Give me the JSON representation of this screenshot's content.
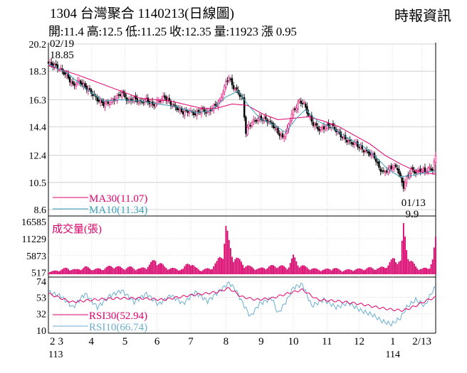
{
  "header": {
    "title": "1304  台灣聚合 1140213(日線圖)",
    "source": "時報資訊",
    "ohlc": "開:11.4 高:12.5 低:11.25 收:12.35 量:11923 漲 0.95"
  },
  "colors": {
    "up": "#e0006e",
    "down": "#000000",
    "ma30": "#e0006e",
    "ma10": "#3aa0b8",
    "volume": "#d8006a",
    "rsi30": "#e0006e",
    "rsi10": "#6aaed0",
    "grid": "#c8c8c8"
  },
  "chart_data": [
    {
      "type": "candlestick",
      "ylim": [
        8.6,
        20.2
      ],
      "y_ticks": [
        "20.2",
        "18.3",
        "16.3",
        "14.4",
        "12.4",
        "10.5",
        "8.6"
      ],
      "x_ticks": [
        "2",
        "3",
        "4",
        "5",
        "6",
        "7",
        "8",
        "9",
        "10",
        "11",
        "12",
        "1",
        "2/13"
      ],
      "x_year_labels": [
        "113",
        "114"
      ],
      "close_path": [
        [
          0,
          18.85
        ],
        [
          4,
          18.7
        ],
        [
          8,
          18.4
        ],
        [
          12,
          18.0
        ],
        [
          16,
          17.3
        ],
        [
          20,
          17.6
        ],
        [
          24,
          17.2
        ],
        [
          28,
          16.8
        ],
        [
          32,
          16.3
        ],
        [
          36,
          16.0
        ],
        [
          40,
          16.1
        ],
        [
          44,
          16.4
        ],
        [
          48,
          16.8
        ],
        [
          52,
          16.2
        ],
        [
          56,
          16.4
        ],
        [
          60,
          16.1
        ],
        [
          64,
          16.3
        ],
        [
          68,
          15.9
        ],
        [
          72,
          16.2
        ],
        [
          76,
          16.5
        ],
        [
          80,
          16.0
        ],
        [
          84,
          15.7
        ],
        [
          88,
          15.4
        ],
        [
          92,
          15.5
        ],
        [
          96,
          15.3
        ],
        [
          100,
          15.6
        ],
        [
          104,
          15.4
        ],
        [
          108,
          15.8
        ],
        [
          112,
          16.2
        ],
        [
          116,
          17.5
        ],
        [
          118,
          17.9
        ],
        [
          120,
          17.3
        ],
        [
          124,
          16.8
        ],
        [
          127,
          16.3
        ],
        [
          129,
          14.0
        ],
        [
          131,
          14.5
        ],
        [
          134,
          14.8
        ],
        [
          138,
          15.0
        ],
        [
          142,
          14.9
        ],
        [
          146,
          14.6
        ],
        [
          150,
          14.0
        ],
        [
          153,
          13.6
        ],
        [
          156,
          14.2
        ],
        [
          159,
          15.3
        ],
        [
          162,
          15.8
        ],
        [
          164,
          16.2
        ],
        [
          167,
          16.0
        ],
        [
          170,
          15.2
        ],
        [
          173,
          14.6
        ],
        [
          177,
          14.2
        ],
        [
          181,
          14.4
        ],
        [
          185,
          14.5
        ],
        [
          189,
          14.0
        ],
        [
          193,
          13.6
        ],
        [
          197,
          13.3
        ],
        [
          201,
          13.2
        ],
        [
          205,
          12.8
        ],
        [
          209,
          12.6
        ],
        [
          213,
          12.3
        ],
        [
          216,
          11.5
        ],
        [
          219,
          11.2
        ],
        [
          222,
          11.4
        ],
        [
          225,
          11.6
        ],
        [
          228,
          11.5
        ],
        [
          230,
          10.8
        ],
        [
          232,
          10.2
        ],
        [
          234,
          10.8
        ],
        [
          237,
          11.4
        ],
        [
          240,
          11.2
        ],
        [
          243,
          11.4
        ],
        [
          246,
          11.3
        ],
        [
          249,
          11.5
        ],
        [
          251,
          11.4
        ],
        [
          253,
          12.35
        ]
      ],
      "ma30_path": [
        [
          0,
          18.7
        ],
        [
          20,
          18.0
        ],
        [
          40,
          17.2
        ],
        [
          60,
          16.4
        ],
        [
          80,
          16.2
        ],
        [
          100,
          15.7
        ],
        [
          110,
          15.7
        ],
        [
          120,
          16.0
        ],
        [
          130,
          15.9
        ],
        [
          140,
          15.3
        ],
        [
          150,
          14.9
        ],
        [
          160,
          15.0
        ],
        [
          170,
          15.1
        ],
        [
          180,
          14.8
        ],
        [
          190,
          14.4
        ],
        [
          200,
          13.8
        ],
        [
          210,
          13.2
        ],
        [
          220,
          12.4
        ],
        [
          230,
          11.8
        ],
        [
          240,
          11.3
        ],
        [
          253,
          11.07
        ]
      ],
      "ma10_path": [
        [
          0,
          18.8
        ],
        [
          12,
          18.2
        ],
        [
          24,
          17.1
        ],
        [
          36,
          16.2
        ],
        [
          48,
          16.3
        ],
        [
          60,
          16.2
        ],
        [
          72,
          16.0
        ],
        [
          84,
          15.8
        ],
        [
          96,
          15.4
        ],
        [
          106,
          15.5
        ],
        [
          116,
          16.5
        ],
        [
          124,
          16.9
        ],
        [
          130,
          16.0
        ],
        [
          138,
          15.0
        ],
        [
          148,
          14.5
        ],
        [
          155,
          14.0
        ],
        [
          162,
          15.0
        ],
        [
          168,
          15.6
        ],
        [
          176,
          14.8
        ],
        [
          186,
          14.3
        ],
        [
          196,
          13.6
        ],
        [
          206,
          13.0
        ],
        [
          214,
          12.3
        ],
        [
          222,
          11.4
        ],
        [
          230,
          10.9
        ],
        [
          238,
          11.0
        ],
        [
          246,
          11.2
        ],
        [
          253,
          11.34
        ]
      ],
      "annotations": [
        {
          "label_date": "02/19",
          "label_price": "18.85",
          "day": 0,
          "price": 18.85
        },
        {
          "label_date": "01/13",
          "label_price": "9.9",
          "day": 232,
          "price": 9.9
        }
      ],
      "legend": {
        "ma30": "MA30(11.07)",
        "ma10": "MA10(11.34)"
      }
    },
    {
      "type": "bar",
      "title": "成交量(張)",
      "ylim": [
        0,
        16585
      ],
      "y_ticks": [
        "16585",
        "11229",
        "5873",
        "517"
      ],
      "volume_points": [
        [
          0,
          800
        ],
        [
          6,
          1400
        ],
        [
          12,
          2200
        ],
        [
          18,
          1600
        ],
        [
          24,
          2600
        ],
        [
          30,
          1800
        ],
        [
          36,
          2100
        ],
        [
          42,
          3100
        ],
        [
          48,
          2300
        ],
        [
          54,
          2500
        ],
        [
          60,
          1900
        ],
        [
          66,
          3400
        ],
        [
          70,
          5400
        ],
        [
          76,
          2600
        ],
        [
          82,
          2000
        ],
        [
          88,
          1800
        ],
        [
          92,
          4800
        ],
        [
          96,
          2300
        ],
        [
          100,
          1500
        ],
        [
          106,
          2200
        ],
        [
          110,
          4200
        ],
        [
          114,
          8300
        ],
        [
          116,
          16585
        ],
        [
          118,
          11000
        ],
        [
          120,
          7500
        ],
        [
          124,
          5200
        ],
        [
          128,
          3600
        ],
        [
          132,
          2600
        ],
        [
          138,
          2000
        ],
        [
          144,
          2800
        ],
        [
          150,
          3200
        ],
        [
          156,
          2400
        ],
        [
          160,
          6200
        ],
        [
          164,
          3400
        ],
        [
          168,
          2600
        ],
        [
          174,
          1900
        ],
        [
          180,
          1600
        ],
        [
          186,
          2300
        ],
        [
          192,
          1400
        ],
        [
          198,
          1700
        ],
        [
          204,
          1900
        ],
        [
          210,
          2300
        ],
        [
          216,
          2100
        ],
        [
          222,
          3400
        ],
        [
          226,
          5900
        ],
        [
          230,
          4600
        ],
        [
          232,
          16585
        ],
        [
          236,
          5200
        ],
        [
          240,
          2800
        ],
        [
          244,
          1900
        ],
        [
          248,
          2300
        ],
        [
          251,
          5200
        ],
        [
          253,
          11923
        ]
      ]
    },
    {
      "type": "line",
      "ylim": [
        10,
        74
      ],
      "y_ticks": [
        "74",
        "53",
        "32",
        "10"
      ],
      "series": [
        {
          "name": "RSI30(52.94)",
          "values": [
            [
              0,
              58
            ],
            [
              15,
              47
            ],
            [
              30,
              50
            ],
            [
              45,
              52
            ],
            [
              60,
              52
            ],
            [
              75,
              50
            ],
            [
              90,
              55
            ],
            [
              110,
              60
            ],
            [
              118,
              65
            ],
            [
              126,
              54
            ],
            [
              136,
              50
            ],
            [
              146,
              52
            ],
            [
              156,
              58
            ],
            [
              166,
              63
            ],
            [
              176,
              50
            ],
            [
              190,
              48
            ],
            [
              205,
              44
            ],
            [
              215,
              40
            ],
            [
              225,
              37
            ],
            [
              232,
              36
            ],
            [
              240,
              42
            ],
            [
              248,
              50
            ],
            [
              253,
              52.94
            ]
          ]
        },
        {
          "name": "RSI10(66.74)",
          "values": [
            [
              0,
              60
            ],
            [
              8,
              55
            ],
            [
              16,
              40
            ],
            [
              24,
              58
            ],
            [
              32,
              40
            ],
            [
              40,
              55
            ],
            [
              48,
              62
            ],
            [
              56,
              47
            ],
            [
              64,
              58
            ],
            [
              72,
              44
            ],
            [
              80,
              56
            ],
            [
              88,
              45
            ],
            [
              96,
              60
            ],
            [
              104,
              48
            ],
            [
              112,
              62
            ],
            [
              118,
              72
            ],
            [
              122,
              64
            ],
            [
              128,
              42
            ],
            [
              132,
              28
            ],
            [
              138,
              45
            ],
            [
              146,
              52
            ],
            [
              150,
              32
            ],
            [
              156,
              50
            ],
            [
              160,
              66
            ],
            [
              166,
              70
            ],
            [
              172,
              42
            ],
            [
              180,
              50
            ],
            [
              188,
              40
            ],
            [
              196,
              46
            ],
            [
              204,
              36
            ],
            [
              212,
              30
            ],
            [
              218,
              22
            ],
            [
              224,
              18
            ],
            [
              230,
              26
            ],
            [
              234,
              40
            ],
            [
              240,
              50
            ],
            [
              246,
              42
            ],
            [
              250,
              58
            ],
            [
              253,
              66.74
            ]
          ]
        }
      ]
    }
  ]
}
